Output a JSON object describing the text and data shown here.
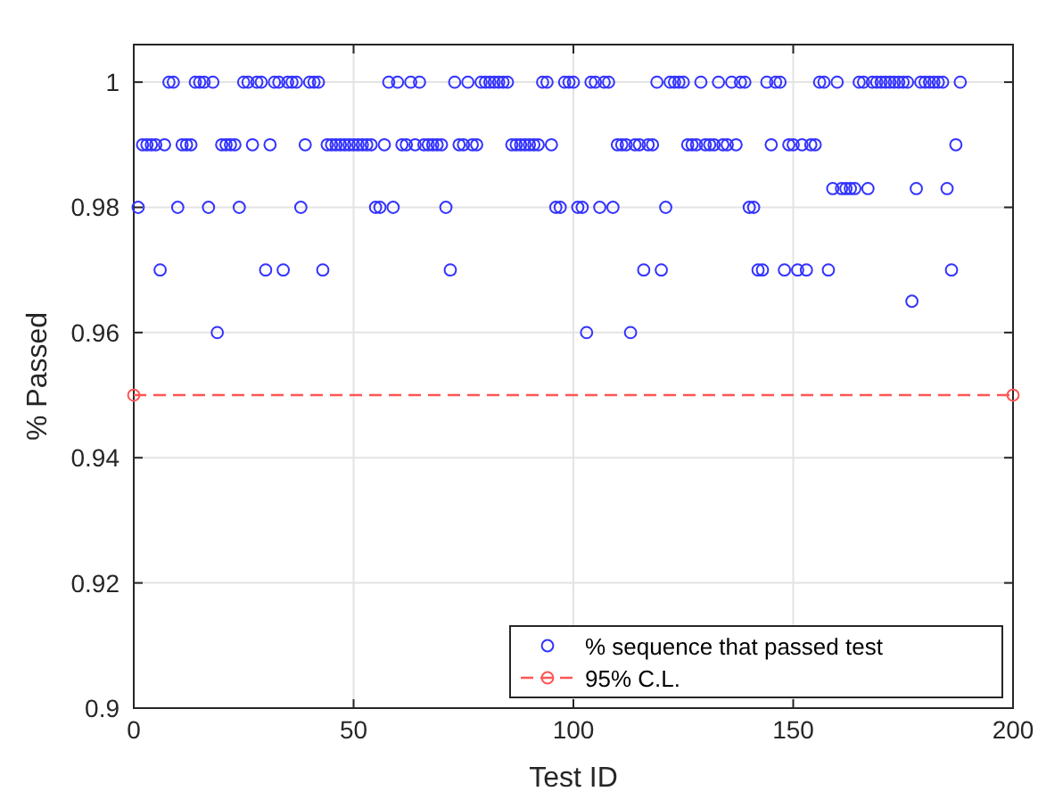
{
  "chart_data": {
    "type": "scatter",
    "xlabel": "Test ID",
    "ylabel": "% Passed",
    "xlim": [
      0,
      200
    ],
    "xticks": [
      0,
      50,
      100,
      150,
      200
    ],
    "ylim": [
      0.9,
      1.006
    ],
    "yticks": [
      0.9,
      0.92,
      0.94,
      0.96,
      0.98,
      1
    ],
    "grid": true,
    "legend": "bottom right",
    "marker": "circle",
    "series": [
      {
        "name": "% sequence that passed test",
        "color": "#3333ff",
        "x": [
          1,
          2,
          3,
          4,
          5,
          6,
          7,
          8,
          9,
          10,
          11,
          12,
          13,
          14,
          15,
          16,
          17,
          18,
          19,
          20,
          21,
          22,
          23,
          24,
          25,
          26,
          27,
          28,
          29,
          30,
          31,
          32,
          33,
          34,
          35,
          36,
          37,
          38,
          39,
          40,
          41,
          42,
          43,
          44,
          45,
          46,
          47,
          48,
          49,
          50,
          51,
          52,
          53,
          54,
          55,
          56,
          57,
          58,
          59,
          60,
          61,
          62,
          63,
          64,
          65,
          66,
          67,
          68,
          69,
          70,
          71,
          72,
          73,
          74,
          75,
          76,
          77,
          78,
          79,
          80,
          81,
          82,
          83,
          84,
          85,
          86,
          87,
          88,
          89,
          90,
          91,
          92,
          93,
          94,
          95,
          96,
          97,
          98,
          99,
          100,
          101,
          102,
          103,
          104,
          105,
          106,
          107,
          108,
          109,
          110,
          111,
          112,
          113,
          114,
          115,
          116,
          117,
          118,
          119,
          120,
          121,
          122,
          123,
          124,
          125,
          126,
          127,
          128,
          129,
          130,
          131,
          132,
          133,
          134,
          135,
          136,
          137,
          138,
          139,
          140,
          141,
          142,
          143,
          144,
          145,
          146,
          147,
          148,
          149,
          150,
          151,
          152,
          153,
          154,
          155,
          156,
          157,
          158,
          159,
          160,
          161,
          162,
          163,
          164,
          165,
          166,
          167,
          168,
          169,
          170,
          171,
          172,
          173,
          174,
          175,
          176,
          177,
          178,
          179,
          180,
          181,
          182,
          183,
          184,
          185,
          186,
          187,
          188
        ],
        "values": [
          0.98,
          0.99,
          0.99,
          0.99,
          0.99,
          0.97,
          0.99,
          1,
          1,
          0.98,
          0.99,
          0.99,
          0.99,
          1,
          1,
          1,
          0.98,
          1,
          0.96,
          0.99,
          0.99,
          0.99,
          0.99,
          0.98,
          1,
          1,
          0.99,
          1,
          1,
          0.97,
          0.99,
          1,
          1,
          0.97,
          1,
          1,
          1,
          0.98,
          0.99,
          1,
          1,
          1,
          0.97,
          0.99,
          0.99,
          0.99,
          0.99,
          0.99,
          0.99,
          0.99,
          0.99,
          0.99,
          0.99,
          0.99,
          0.98,
          0.98,
          0.99,
          1,
          0.98,
          1,
          0.99,
          0.99,
          1,
          0.99,
          1,
          0.99,
          0.99,
          0.99,
          0.99,
          0.99,
          0.98,
          0.97,
          1,
          0.99,
          0.99,
          1,
          0.99,
          0.99,
          1,
          1,
          1,
          1,
          1,
          1,
          1,
          0.99,
          0.99,
          0.99,
          0.99,
          0.99,
          0.99,
          0.99,
          1,
          1,
          0.99,
          0.98,
          0.98,
          1,
          1,
          1,
          0.98,
          0.98,
          0.96,
          1,
          1,
          0.98,
          1,
          1,
          0.98,
          0.99,
          0.99,
          0.99,
          0.96,
          0.99,
          0.99,
          0.97,
          0.99,
          0.99,
          1,
          0.97,
          0.98,
          1,
          1,
          1,
          1,
          0.99,
          0.99,
          0.99,
          1,
          0.99,
          0.99,
          0.99,
          1,
          0.99,
          0.99,
          1,
          0.99,
          1,
          1,
          0.98,
          0.98,
          0.97,
          0.97,
          1,
          0.99,
          1,
          1,
          0.97,
          0.99,
          0.99,
          0.97,
          0.99,
          0.97,
          0.99,
          0.99,
          1,
          1,
          0.97,
          0.983,
          1,
          0.983,
          0.983,
          0.983,
          0.983,
          1,
          1,
          0.983,
          1,
          1,
          1,
          1,
          1,
          1,
          1,
          1,
          1,
          0.965,
          0.983,
          1,
          1,
          1,
          1,
          1,
          1,
          0.983,
          0.97,
          0.99,
          1
        ]
      },
      {
        "name": "95% C.L.",
        "color": "#ff5555",
        "type": "line",
        "marker": "circle",
        "line_style": "dashed",
        "x": [
          0,
          200
        ],
        "values": [
          0.95,
          0.95
        ]
      }
    ]
  }
}
